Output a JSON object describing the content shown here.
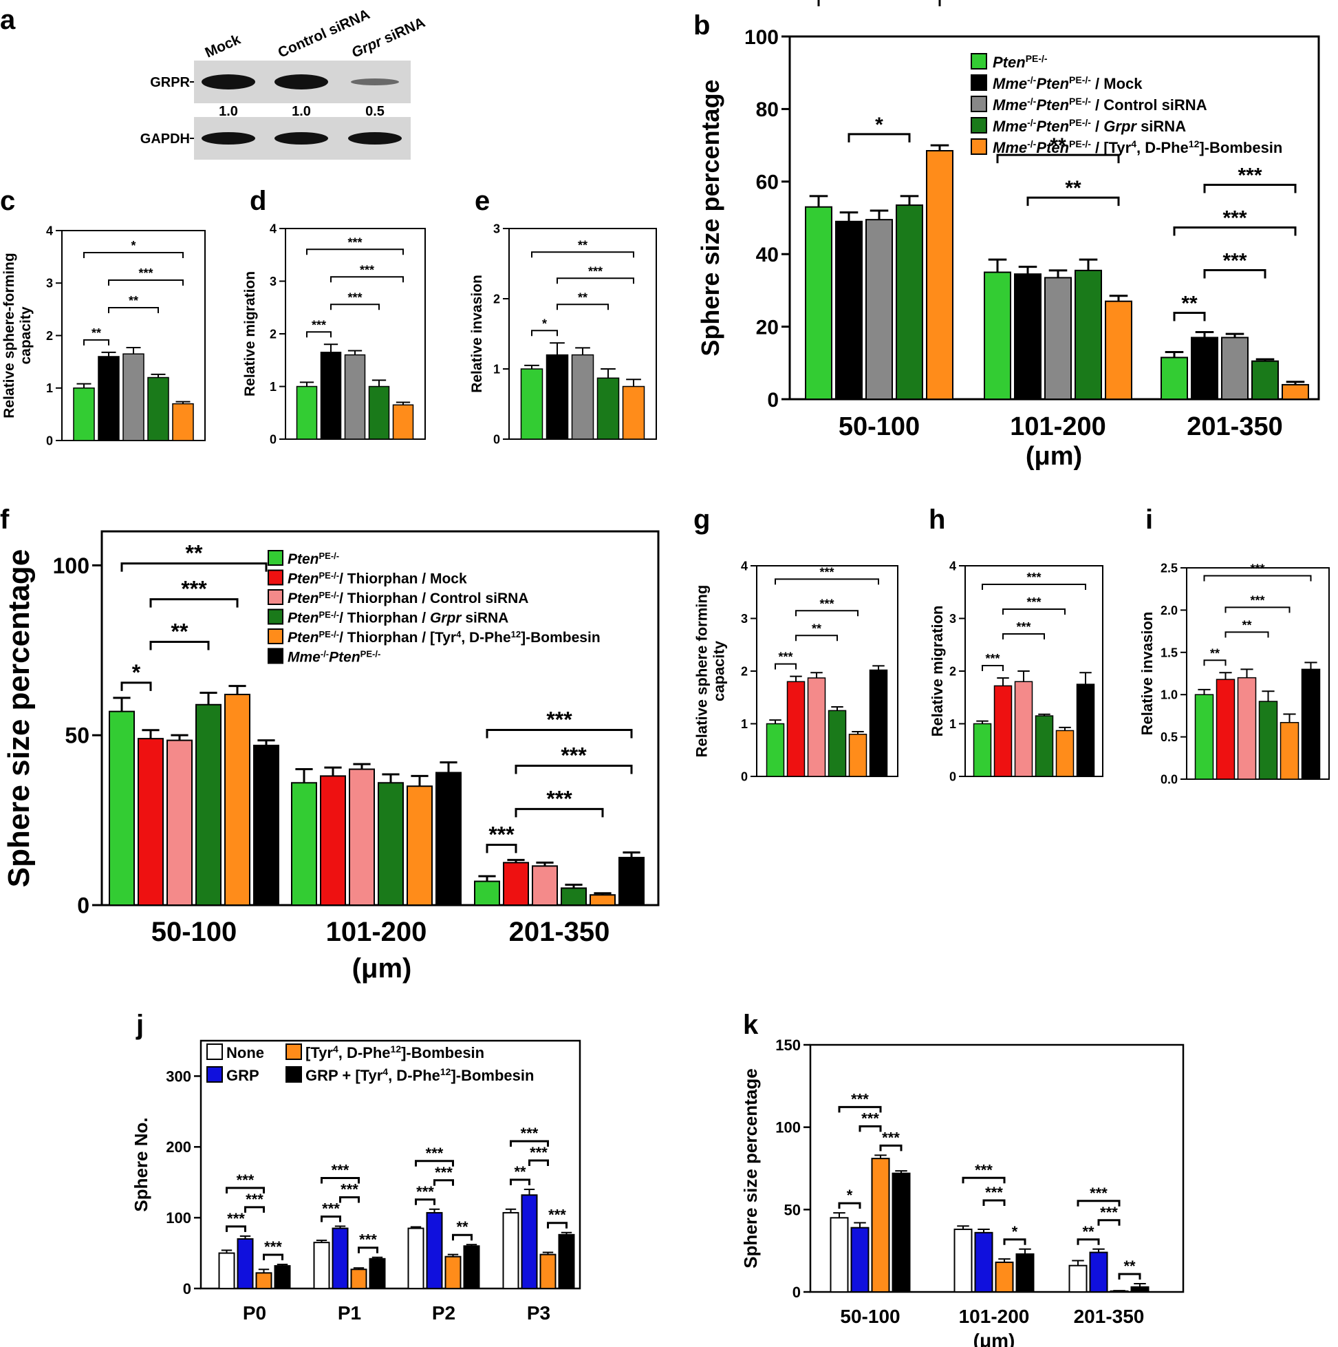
{
  "panel_letters": [
    "a",
    "b",
    "c",
    "d",
    "e",
    "f",
    "g",
    "h",
    "i",
    "j",
    "k"
  ],
  "colors": {
    "light_green": "#33cc33",
    "black": "#000000",
    "gray": "#888888",
    "dark_green": "#1a7a1a",
    "orange": "#ff8c1a",
    "red": "#ee1111",
    "pink": "#f48a8a",
    "blue": "#1010dd",
    "white": "#ffffff"
  },
  "blot": {
    "lanes": [
      "Mock",
      "Control siRNA",
      "Grpr siRNA"
    ],
    "rows": [
      "GRPR",
      "GAPDH"
    ],
    "quant": [
      "1.0",
      "1.0",
      "0.5"
    ]
  },
  "legend_b": [
    {
      "pre": "",
      "ital": "Pten",
      "sup": "PE-/-",
      "post": "",
      "color": "light_green"
    },
    {
      "pre": "",
      "ital": "Mme",
      "sup": "-/-",
      "ital2": "Pten",
      "sup2": "PE-/-",
      "post": " / Mock",
      "color": "black"
    },
    {
      "pre": "",
      "ital": "Mme",
      "sup": "-/-",
      "ital2": "Pten",
      "sup2": "PE-/-",
      "post": " / Control siRNA",
      "color": "gray"
    },
    {
      "pre": "",
      "ital": "Mme",
      "sup": "-/-",
      "ital2": "Pten",
      "sup2": "PE-/-",
      "post": " / ",
      "ital3": "Grpr",
      "post2": " siRNA",
      "color": "dark_green"
    },
    {
      "pre": "",
      "ital": "Mme",
      "sup": "-/-",
      "ital2": "Pten",
      "sup2": "PE-/-",
      "post": " / [Tyr",
      "sup3": "4",
      "post2": ", D-Phe",
      "sup4": "12",
      "post3": "]-Bombesin",
      "color": "orange"
    }
  ],
  "legend_f": [
    {
      "ital": "Pten",
      "sup": "PE-/-",
      "post": "",
      "color": "light_green"
    },
    {
      "ital": "Pten",
      "sup": "PE-/-",
      "post": "/ Thiorphan / Mock",
      "color": "red"
    },
    {
      "ital": "Pten",
      "sup": "PE-/-",
      "post": "/ Thiorphan / Control siRNA",
      "color": "pink"
    },
    {
      "ital": "Pten",
      "sup": "PE-/-",
      "post": "/ Thiorphan / ",
      "ital3": "Grpr",
      "post2": " siRNA",
      "color": "dark_green"
    },
    {
      "ital": "Pten",
      "sup": "PE-/-",
      "post": "/ Thiorphan / [Tyr",
      "sup3": "4",
      "post2": ", D-Phe",
      "sup4": "12",
      "post3": "]-Bombesin",
      "color": "orange"
    },
    {
      "ital": "Mme",
      "sup": "-/-",
      "ital2": "Pten",
      "sup2": "PE-/-",
      "post": "",
      "color": "black"
    }
  ],
  "legend_j": [
    {
      "text": "None",
      "color": "white"
    },
    {
      "text": "[Tyr",
      "sup": "4",
      "text2": ", D-Phe",
      "sup2": "12",
      "text3": "]-Bombesin",
      "color": "orange"
    },
    {
      "text": "GRP",
      "color": "blue"
    },
    {
      "text": "GRP + [Tyr",
      "sup": "4",
      "text2": ", D-Phe",
      "sup2": "12",
      "text3": "]-Bombesin",
      "color": "black"
    }
  ],
  "chart_data": [
    {
      "id": "b",
      "type": "bar",
      "categories": [
        "50-100",
        "101-200",
        "201-350"
      ],
      "xlabel": "(μm)",
      "ylabel": "Sphere size percentage",
      "ylim": [
        0,
        100
      ],
      "yticks": [
        0,
        20,
        40,
        60,
        80,
        100
      ],
      "bar_colors": [
        "light_green",
        "black",
        "gray",
        "dark_green",
        "orange"
      ],
      "values": [
        [
          53,
          49,
          49.5,
          53.5,
          68.5
        ],
        [
          35,
          34.5,
          33.5,
          35.5,
          27
        ],
        [
          11.5,
          17,
          17,
          10.5,
          4
        ]
      ],
      "errors": [
        [
          3,
          2.5,
          2.5,
          2.5,
          1.5
        ],
        [
          3.5,
          2,
          2,
          3,
          1.5
        ],
        [
          1.5,
          1.5,
          1,
          0.5,
          0.8
        ]
      ],
      "sig": [
        {
          "g": 0,
          "a": 1,
          "b": 4,
          "level": 4,
          "label": "***"
        },
        {
          "g": 0,
          "a": 0,
          "b": 4,
          "level": 3,
          "label": "***"
        },
        {
          "g": 0,
          "a": 1,
          "b": 3,
          "level": 1,
          "label": "*"
        },
        {
          "g": 1,
          "a": 0,
          "b": 4,
          "level": 2,
          "label": "**"
        },
        {
          "g": 1,
          "a": 1,
          "b": 4,
          "level": 1,
          "label": "**"
        },
        {
          "g": 2,
          "a": 1,
          "b": 4,
          "level": 3,
          "label": "***"
        },
        {
          "g": 2,
          "a": 0,
          "b": 4,
          "level": 2,
          "label": "***"
        },
        {
          "g": 2,
          "a": 1,
          "b": 3,
          "level": 1,
          "label": "***"
        },
        {
          "g": 2,
          "a": 0,
          "b": 1,
          "level": 0,
          "label": "**"
        }
      ]
    },
    {
      "id": "c",
      "type": "bar",
      "categories": [
        ""
      ],
      "ylabel": "Relative sphere-forming capacity",
      "ylim": [
        0,
        4
      ],
      "yticks": [
        0,
        1,
        2,
        3,
        4
      ],
      "bar_colors": [
        "light_green",
        "black",
        "gray",
        "dark_green",
        "orange"
      ],
      "values": [
        [
          1.0,
          1.6,
          1.65,
          1.2,
          0.7
        ]
      ],
      "errors": [
        [
          0.08,
          0.08,
          0.12,
          0.06,
          0.04
        ]
      ],
      "sig": [
        {
          "g": 0,
          "a": 0,
          "b": 4,
          "level": 3,
          "label": "*"
        },
        {
          "g": 0,
          "a": 1,
          "b": 4,
          "level": 2,
          "label": "***"
        },
        {
          "g": 0,
          "a": 1,
          "b": 3,
          "level": 1,
          "label": "**"
        },
        {
          "g": 0,
          "a": 0,
          "b": 1,
          "level": 0,
          "label": "**"
        }
      ]
    },
    {
      "id": "d",
      "type": "bar",
      "categories": [
        ""
      ],
      "ylabel": "Relative migration",
      "ylim": [
        0,
        4
      ],
      "yticks": [
        0,
        1,
        2,
        3,
        4
      ],
      "bar_colors": [
        "light_green",
        "black",
        "gray",
        "dark_green",
        "orange"
      ],
      "values": [
        [
          1.0,
          1.65,
          1.6,
          1.0,
          0.65
        ]
      ],
      "errors": [
        [
          0.08,
          0.15,
          0.08,
          0.12,
          0.05
        ]
      ],
      "sig": [
        {
          "g": 0,
          "a": 0,
          "b": 4,
          "level": 3,
          "label": "***"
        },
        {
          "g": 0,
          "a": 1,
          "b": 4,
          "level": 2,
          "label": "***"
        },
        {
          "g": 0,
          "a": 1,
          "b": 3,
          "level": 1,
          "label": "***"
        },
        {
          "g": 0,
          "a": 0,
          "b": 1,
          "level": 0,
          "label": "***"
        }
      ]
    },
    {
      "id": "e",
      "type": "bar",
      "categories": [
        ""
      ],
      "ylabel": "Relative invasion",
      "ylim": [
        0,
        3
      ],
      "yticks": [
        0,
        1,
        2,
        3
      ],
      "bar_colors": [
        "light_green",
        "black",
        "gray",
        "dark_green",
        "orange"
      ],
      "values": [
        [
          1.0,
          1.2,
          1.2,
          0.87,
          0.75
        ]
      ],
      "errors": [
        [
          0.05,
          0.17,
          0.1,
          0.13,
          0.1
        ]
      ],
      "sig": [
        {
          "g": 0,
          "a": 0,
          "b": 4,
          "level": 3,
          "label": "**"
        },
        {
          "g": 0,
          "a": 1,
          "b": 4,
          "level": 2,
          "label": "***"
        },
        {
          "g": 0,
          "a": 1,
          "b": 3,
          "level": 1,
          "label": "**"
        },
        {
          "g": 0,
          "a": 0,
          "b": 1,
          "level": 0,
          "label": "*"
        }
      ]
    },
    {
      "id": "f",
      "type": "bar",
      "categories": [
        "50-100",
        "101-200",
        "201-350"
      ],
      "xlabel": "(μm)",
      "ylabel": "Sphere size percentage",
      "ylim": [
        0,
        110
      ],
      "yticks": [
        0,
        50,
        100
      ],
      "bar_colors": [
        "light_green",
        "red",
        "pink",
        "dark_green",
        "orange",
        "black"
      ],
      "values": [
        [
          57,
          49,
          48.5,
          59,
          62,
          47
        ],
        [
          36,
          38,
          40,
          36,
          35,
          39
        ],
        [
          7,
          12.5,
          11.5,
          5,
          3,
          14
        ]
      ],
      "errors": [
        [
          4,
          2.5,
          1.5,
          3.5,
          2.5,
          1.5
        ],
        [
          4,
          2.5,
          1.5,
          2.5,
          3,
          3
        ],
        [
          1.5,
          0.8,
          1,
          1,
          0.5,
          1.5
        ]
      ],
      "sig": [
        {
          "g": 0,
          "a": 0,
          "b": 5,
          "level": 3,
          "label": "**"
        },
        {
          "g": 0,
          "a": 1,
          "b": 4,
          "level": 2,
          "label": "***"
        },
        {
          "g": 0,
          "a": 1,
          "b": 3,
          "level": 1,
          "label": "**"
        },
        {
          "g": 0,
          "a": 0,
          "b": 1,
          "level": 0,
          "label": "*"
        },
        {
          "g": 2,
          "a": 0,
          "b": 5,
          "level": 3,
          "label": "***"
        },
        {
          "g": 2,
          "a": 1,
          "b": 5,
          "level": 2,
          "label": "***"
        },
        {
          "g": 2,
          "a": 1,
          "b": 4,
          "level": 1,
          "label": "***"
        },
        {
          "g": 2,
          "a": 0,
          "b": 1,
          "level": 0,
          "label": "***"
        }
      ]
    },
    {
      "id": "g",
      "type": "bar",
      "categories": [
        ""
      ],
      "ylabel": "Relative sphere forming capacity",
      "ylim": [
        0,
        4
      ],
      "yticks": [
        0,
        1,
        2,
        3,
        4
      ],
      "bar_colors": [
        "light_green",
        "red",
        "pink",
        "dark_green",
        "orange",
        "black"
      ],
      "values": [
        [
          1.0,
          1.8,
          1.87,
          1.25,
          0.8,
          2.02
        ]
      ],
      "errors": [
        [
          0.07,
          0.1,
          0.1,
          0.07,
          0.05,
          0.08
        ]
      ],
      "sig": [
        {
          "g": 0,
          "a": 0,
          "b": 5,
          "level": 3,
          "label": "***"
        },
        {
          "g": 0,
          "a": 1,
          "b": 4,
          "level": 2,
          "label": "***"
        },
        {
          "g": 0,
          "a": 1,
          "b": 3,
          "level": 1,
          "label": "**"
        },
        {
          "g": 0,
          "a": 0,
          "b": 1,
          "level": 0,
          "label": "***"
        }
      ]
    },
    {
      "id": "h",
      "type": "bar",
      "categories": [
        ""
      ],
      "ylabel": "Relative migration",
      "ylim": [
        0,
        4
      ],
      "yticks": [
        0,
        1,
        2,
        3,
        4
      ],
      "bar_colors": [
        "light_green",
        "red",
        "pink",
        "dark_green",
        "orange",
        "black"
      ],
      "values": [
        [
          1.0,
          1.72,
          1.8,
          1.15,
          0.87,
          1.75
        ]
      ],
      "errors": [
        [
          0.05,
          0.15,
          0.2,
          0.03,
          0.06,
          0.22
        ]
      ],
      "sig": [
        {
          "g": 0,
          "a": 0,
          "b": 5,
          "level": 3,
          "label": "***"
        },
        {
          "g": 0,
          "a": 1,
          "b": 4,
          "level": 2,
          "label": "***"
        },
        {
          "g": 0,
          "a": 1,
          "b": 3,
          "level": 1,
          "label": "***"
        },
        {
          "g": 0,
          "a": 0,
          "b": 1,
          "level": 0,
          "label": "***"
        }
      ]
    },
    {
      "id": "i",
      "type": "bar",
      "categories": [
        ""
      ],
      "ylabel": "Relative invasion",
      "ylim": [
        0,
        2.5
      ],
      "yticks": [
        0.0,
        0.5,
        1.0,
        1.5,
        2.0,
        2.5
      ],
      "ytick_labels": [
        "0.0",
        "0.5",
        "1.0",
        "1.5",
        "2.0",
        "2.5"
      ],
      "bar_colors": [
        "light_green",
        "red",
        "pink",
        "dark_green",
        "orange",
        "black"
      ],
      "values": [
        [
          1.0,
          1.18,
          1.2,
          0.92,
          0.67,
          1.3
        ]
      ],
      "errors": [
        [
          0.06,
          0.08,
          0.1,
          0.12,
          0.1,
          0.08
        ]
      ],
      "sig": [
        {
          "g": 0,
          "a": 0,
          "b": 5,
          "level": 3,
          "label": "***"
        },
        {
          "g": 0,
          "a": 1,
          "b": 4,
          "level": 2,
          "label": "***"
        },
        {
          "g": 0,
          "a": 1,
          "b": 3,
          "level": 1,
          "label": "**"
        },
        {
          "g": 0,
          "a": 0,
          "b": 1,
          "level": 0,
          "label": "**"
        }
      ]
    },
    {
      "id": "j",
      "type": "bar",
      "categories": [
        "P0",
        "P1",
        "P2",
        "P3"
      ],
      "ylabel": "Sphere No.",
      "ylim": [
        0,
        350
      ],
      "yticks": [
        0,
        100,
        200,
        300
      ],
      "bar_colors": [
        "white",
        "blue",
        "orange",
        "black"
      ],
      "values": [
        [
          50,
          70,
          22,
          32
        ],
        [
          65,
          85,
          27,
          42
        ],
        [
          85,
          107,
          45,
          60
        ],
        [
          107,
          132,
          48,
          76
        ]
      ],
      "errors": [
        [
          4,
          4,
          5,
          2
        ],
        [
          3,
          3,
          2,
          2
        ],
        [
          2,
          5,
          3,
          2
        ],
        [
          5,
          8,
          3,
          3
        ]
      ],
      "sig": [
        {
          "g": 0,
          "a": 0,
          "b": 2,
          "level": 2,
          "label": "***"
        },
        {
          "g": 0,
          "a": 1,
          "b": 2,
          "level": 1,
          "label": "***"
        },
        {
          "g": 0,
          "a": 0,
          "b": 1,
          "level": 0,
          "label": "***"
        },
        {
          "g": 0,
          "a": 2,
          "b": 3,
          "level": 0,
          "label": "***"
        },
        {
          "g": 1,
          "a": 0,
          "b": 2,
          "level": 2,
          "label": "***"
        },
        {
          "g": 1,
          "a": 1,
          "b": 2,
          "level": 1,
          "label": "***"
        },
        {
          "g": 1,
          "a": 0,
          "b": 1,
          "level": 0,
          "label": "***"
        },
        {
          "g": 1,
          "a": 2,
          "b": 3,
          "level": 0,
          "label": "***"
        },
        {
          "g": 2,
          "a": 0,
          "b": 2,
          "level": 2,
          "label": "***"
        },
        {
          "g": 2,
          "a": 1,
          "b": 2,
          "level": 1,
          "label": "***"
        },
        {
          "g": 2,
          "a": 0,
          "b": 1,
          "level": 0,
          "label": "***"
        },
        {
          "g": 2,
          "a": 2,
          "b": 3,
          "level": 0,
          "label": "**"
        },
        {
          "g": 3,
          "a": 0,
          "b": 2,
          "level": 2,
          "label": "***"
        },
        {
          "g": 3,
          "a": 1,
          "b": 2,
          "level": 1,
          "label": "***"
        },
        {
          "g": 3,
          "a": 0,
          "b": 1,
          "level": 0,
          "label": "**"
        },
        {
          "g": 3,
          "a": 2,
          "b": 3,
          "level": 0,
          "label": "***"
        }
      ]
    },
    {
      "id": "k",
      "type": "bar",
      "categories": [
        "50-100",
        "101-200",
        "201-350"
      ],
      "xlabel": "(μm)",
      "ylabel": "Sphere size percentage",
      "ylim": [
        0,
        150
      ],
      "yticks": [
        0,
        50,
        100,
        150
      ],
      "bar_colors": [
        "white",
        "blue",
        "orange",
        "black"
      ],
      "values": [
        [
          45,
          39,
          81,
          72
        ],
        [
          38,
          36,
          18,
          23
        ],
        [
          16,
          24,
          0.5,
          3
        ]
      ],
      "errors": [
        [
          3,
          3,
          2,
          1.5
        ],
        [
          2,
          2,
          2,
          3
        ],
        [
          3,
          2,
          0.3,
          2
        ]
      ],
      "sig": [
        {
          "g": 0,
          "a": 0,
          "b": 2,
          "level": 2,
          "label": "***"
        },
        {
          "g": 0,
          "a": 1,
          "b": 2,
          "level": 1,
          "label": "***"
        },
        {
          "g": 0,
          "a": 0,
          "b": 1,
          "level": 0,
          "label": "*"
        },
        {
          "g": 0,
          "a": 2,
          "b": 3,
          "level": 0,
          "label": "***"
        },
        {
          "g": 1,
          "a": 0,
          "b": 2,
          "level": 2,
          "label": "***"
        },
        {
          "g": 1,
          "a": 1,
          "b": 2,
          "level": 1,
          "label": "***"
        },
        {
          "g": 1,
          "a": 2,
          "b": 3,
          "level": 0,
          "label": "*"
        },
        {
          "g": 2,
          "a": 0,
          "b": 2,
          "level": 2,
          "label": "***"
        },
        {
          "g": 2,
          "a": 1,
          "b": 2,
          "level": 1,
          "label": "***"
        },
        {
          "g": 2,
          "a": 0,
          "b": 1,
          "level": 0,
          "label": "**"
        },
        {
          "g": 2,
          "a": 2,
          "b": 3,
          "level": 0,
          "label": "**"
        }
      ]
    }
  ]
}
